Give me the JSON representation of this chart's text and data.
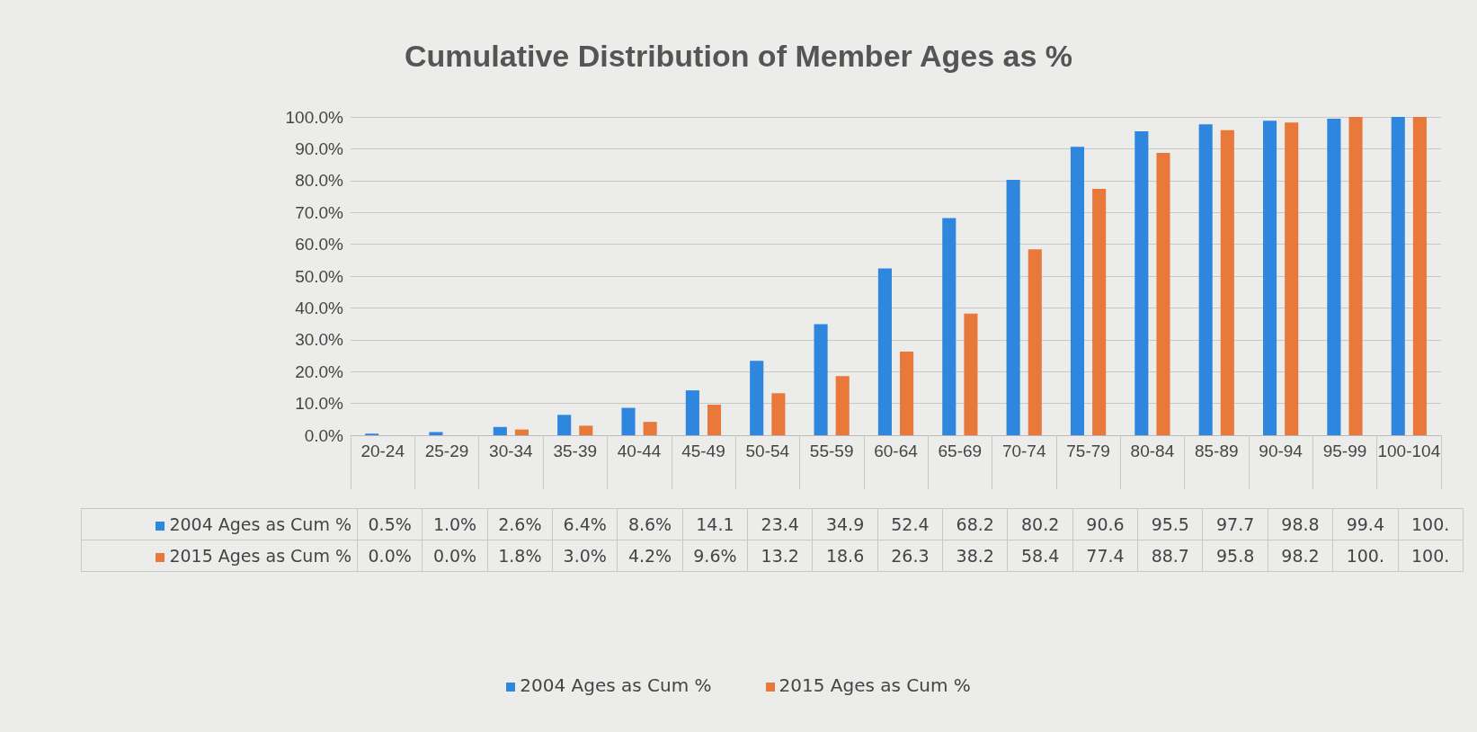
{
  "chart_data": {
    "type": "bar",
    "title": "Cumulative Distribution of Member Ages as %",
    "categories": [
      "20-24",
      "25-29",
      "30-34",
      "35-39",
      "40-44",
      "45-49",
      "50-54",
      "55-59",
      "60-64",
      "65-69",
      "70-74",
      "75-79",
      "80-84",
      "85-89",
      "90-94",
      "95-99",
      "100-104"
    ],
    "series": [
      {
        "name": "2004 Ages as Cum %",
        "color": "#2e86de",
        "values": [
          0.5,
          1.0,
          2.6,
          6.4,
          8.6,
          14.1,
          23.4,
          34.9,
          52.4,
          68.2,
          80.2,
          90.6,
          95.5,
          97.7,
          98.8,
          99.4,
          100
        ],
        "value_labels": [
          "0.5%",
          "1.0%",
          "2.6%",
          "6.4%",
          "8.6%",
          "14.1",
          "23.4",
          "34.9",
          "52.4",
          "68.2",
          "80.2",
          "90.6",
          "95.5",
          "97.7",
          "98.8",
          "99.4",
          "100."
        ]
      },
      {
        "name": "2015 Ages as Cum %",
        "color": "#e8793a",
        "values": [
          0.0,
          0.0,
          1.8,
          3.0,
          4.2,
          9.6,
          13.2,
          18.6,
          26.3,
          38.2,
          58.4,
          77.4,
          88.7,
          95.8,
          98.2,
          100,
          100
        ],
        "value_labels": [
          "0.0%",
          "0.0%",
          "1.8%",
          "3.0%",
          "4.2%",
          "9.6%",
          "13.2",
          "18.6",
          "26.3",
          "38.2",
          "58.4",
          "77.4",
          "88.7",
          "95.8",
          "98.2",
          "100.",
          "100."
        ]
      }
    ],
    "ylim": [
      0,
      100
    ],
    "yticks": [
      {
        "value": 0,
        "label": "0.0%"
      },
      {
        "value": 10,
        "label": "10.0%"
      },
      {
        "value": 20,
        "label": "20.0%"
      },
      {
        "value": 30,
        "label": "30.0%"
      },
      {
        "value": 40,
        "label": "40.0%"
      },
      {
        "value": 50,
        "label": "50.0%"
      },
      {
        "value": 60,
        "label": "60.0%"
      },
      {
        "value": 70,
        "label": "70.0%"
      },
      {
        "value": 80,
        "label": "80.0%"
      },
      {
        "value": 90,
        "label": "90.0%"
      },
      {
        "value": 100,
        "label": "100.0%"
      }
    ],
    "grid": "y",
    "legend": "bottom"
  }
}
